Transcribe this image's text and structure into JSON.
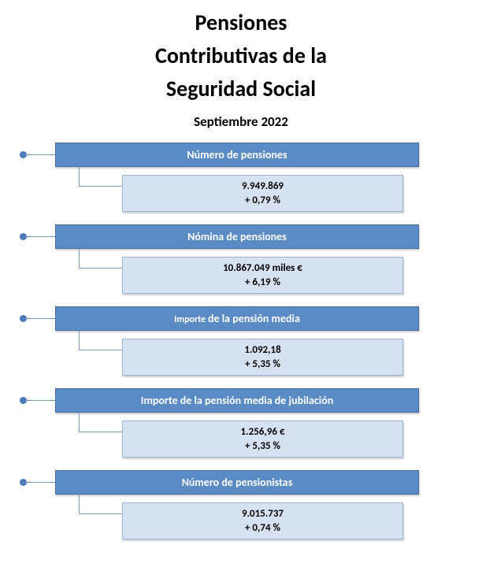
{
  "colors": {
    "header_bg": "#5b8bc5",
    "header_border": "#3f6a9e",
    "value_bg": "#d6e1f1",
    "value_border": "#9fb5d4",
    "connector": "#7a99c2",
    "bullet": "#4a7ab8",
    "page_bg": "#ffffff",
    "text_white": "#ffffff",
    "text_black": "#000000"
  },
  "title_line1": "Pensiones",
  "title_line2": "Contributivas de la",
  "title_line3": "Seguridad Social",
  "subtitle": "Septiembre 2022",
  "items": [
    {
      "label": "Número de pensiones",
      "value": "9.949.869",
      "change": "+ 0,79 %"
    },
    {
      "label": "Nómina de pensiones",
      "value": "10.867.049   miles €",
      "change": "+ 6,19 %"
    },
    {
      "label_html": "<span class='small'>Importe </span>de la pensión media",
      "label": "Importe de la pensión media",
      "value": "1.092,18",
      "change": "+ 5,35 %"
    },
    {
      "label": "Importe de la pensión media de jubilación",
      "value": "1.256,96 €",
      "change": "+ 5,35 %"
    },
    {
      "label": "Número de pensionistas",
      "value": "9.015.737",
      "change": "+ 0,74 %"
    }
  ]
}
